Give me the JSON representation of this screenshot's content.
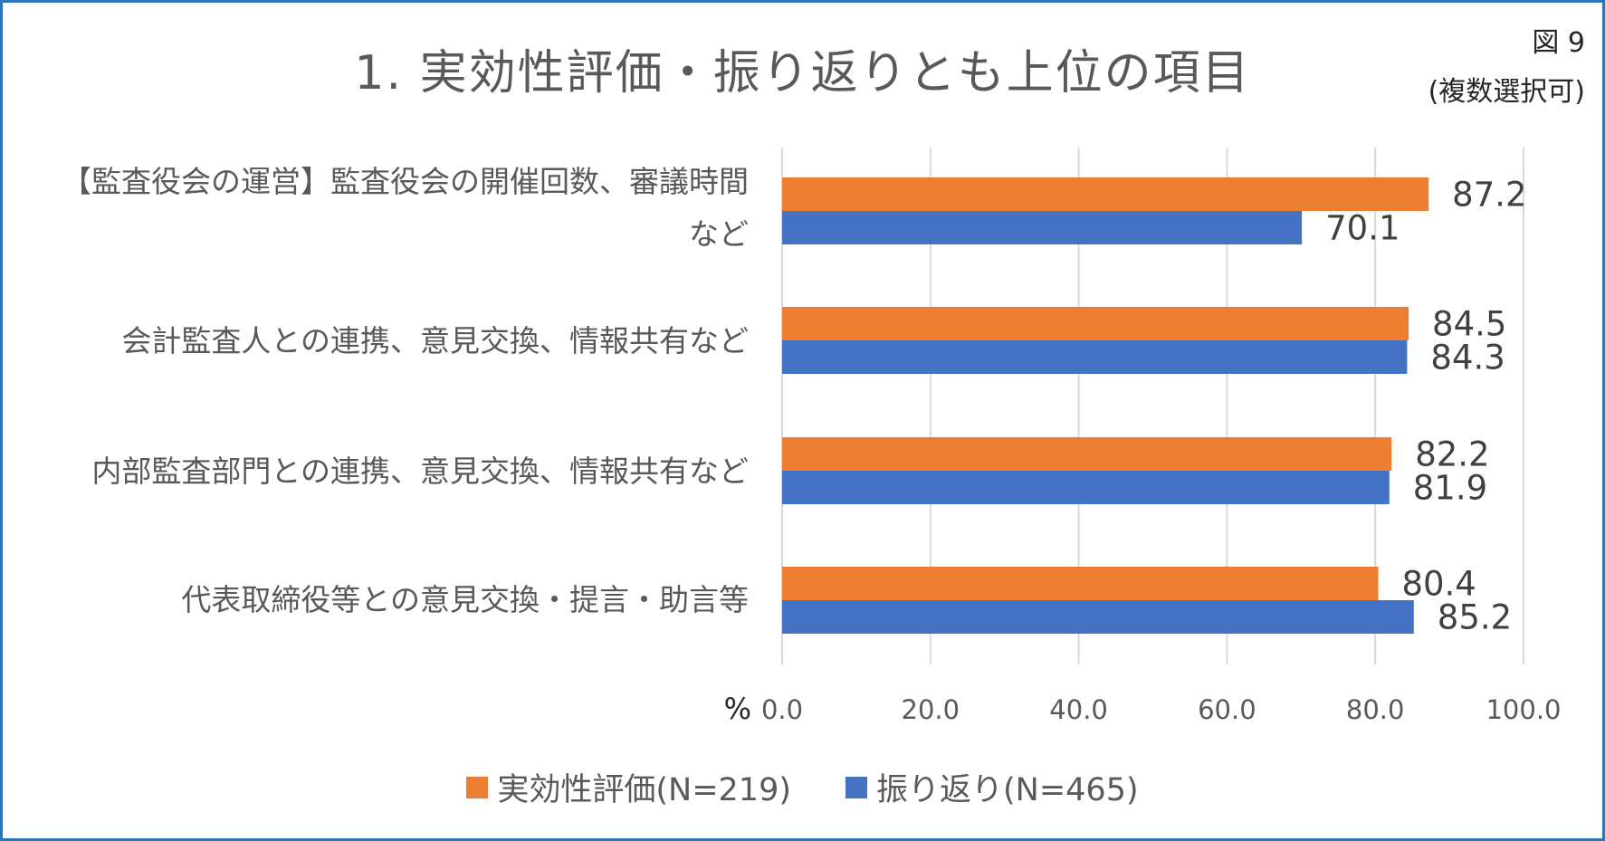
{
  "figure": {
    "number": "図 9",
    "note": "(複数選択可)"
  },
  "chart_data": {
    "type": "bar",
    "orientation": "horizontal",
    "title": "1. 実効性評価・振り返りとも上位の項目",
    "categories": [
      [
        "【監査役会の運営】監査役会の開催回数、審議時間",
        "など"
      ],
      [
        "会計監査人との連携、意見交換、情報共有など"
      ],
      [
        "内部監査部門との連携、意見交換、情報共有など"
      ],
      [
        "代表取締役等との意見交換・提言・助言等"
      ]
    ],
    "series": [
      {
        "name": "実効性評価(N=219)",
        "color": "#ED7D31",
        "values": [
          87.2,
          84.5,
          82.2,
          80.4
        ],
        "labels": [
          "87.2",
          "84.5",
          "82.2",
          "80.4"
        ]
      },
      {
        "name": "振り返り(N=465)",
        "color": "#4472C4",
        "values": [
          70.1,
          84.3,
          81.9,
          85.2
        ],
        "labels": [
          "70.1",
          "84.3",
          "81.9",
          "85.2"
        ]
      }
    ],
    "xlabel": "%",
    "xlim": [
      0,
      100
    ],
    "xticks": [
      "0.0",
      "20.0",
      "40.0",
      "60.0",
      "80.0",
      "100.0"
    ],
    "grid": true,
    "legend_position": "bottom"
  }
}
